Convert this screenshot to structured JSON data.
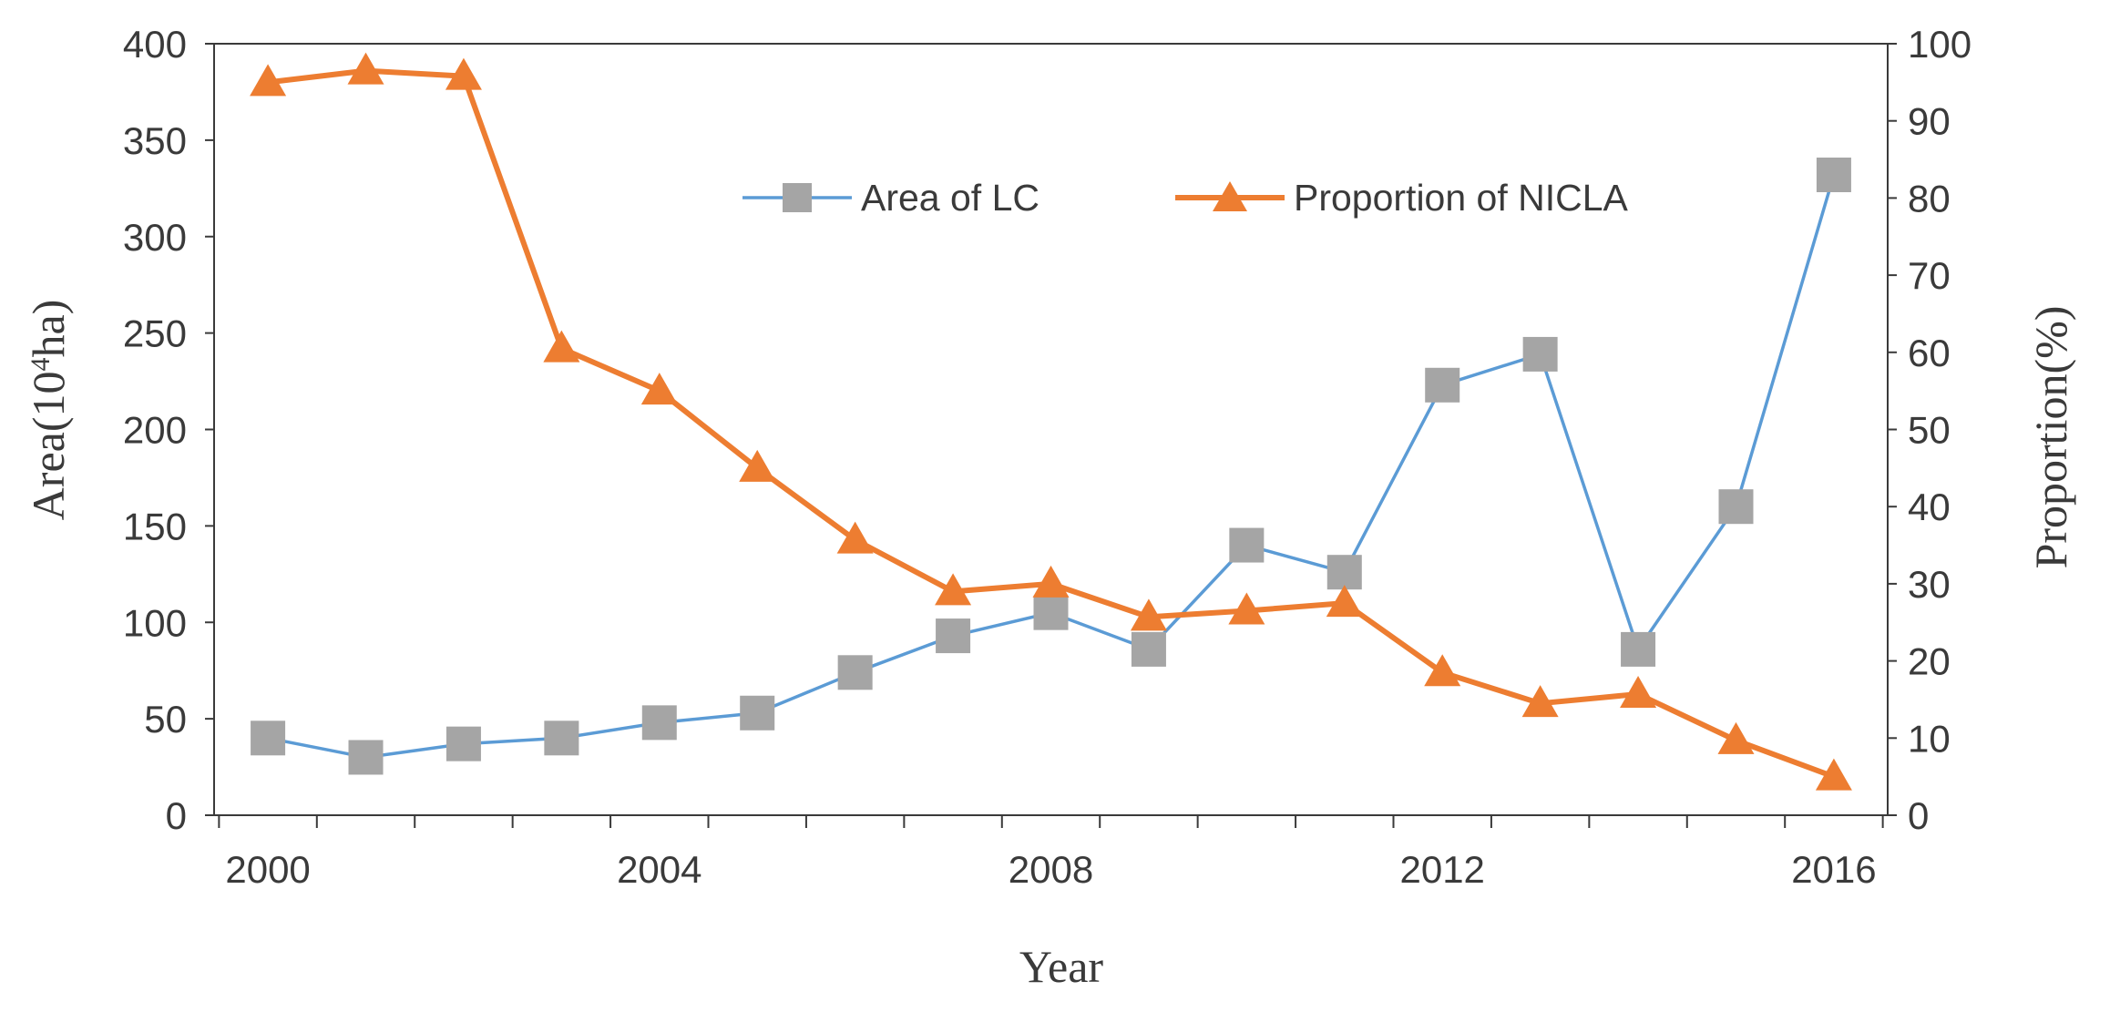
{
  "chart_data": {
    "type": "line",
    "title": "",
    "x": [
      2000,
      2001,
      2002,
      2003,
      2004,
      2005,
      2006,
      2007,
      2008,
      2009,
      2010,
      2011,
      2012,
      2013,
      2014,
      2015,
      2016
    ],
    "xlabel": "Year",
    "x_tick_labels": [
      "2000",
      "2004",
      "2008",
      "2012",
      "2016"
    ],
    "xlim": [
      1999.45,
      2016.55
    ],
    "ylabel_left": {
      "prefix": "Area(10",
      "superscript": "4",
      "suffix": "ha)"
    },
    "ylim_left": [
      0,
      400
    ],
    "y_ticks_left": [
      "0",
      "50",
      "100",
      "150",
      "200",
      "250",
      "300",
      "350",
      "400"
    ],
    "ylabel_right": "Proportion(%)",
    "ylim_right": [
      0,
      100
    ],
    "y_ticks_right": [
      "0",
      "10",
      "20",
      "30",
      "40",
      "50",
      "60",
      "70",
      "80",
      "90",
      "100"
    ],
    "series": [
      {
        "name": "Area of LC",
        "axis": "left",
        "marker": "square",
        "line_color": "#5B9BD5",
        "marker_color": "#A5A5A5",
        "values": [
          40,
          30,
          37,
          40,
          48,
          53,
          74,
          93,
          105,
          86,
          140,
          126,
          223,
          239,
          86,
          160,
          332
        ]
      },
      {
        "name": "Proportion of NICLA",
        "axis": "right",
        "marker": "triangle",
        "line_color": "#ED7D31",
        "marker_color": "#ED7D31",
        "values": [
          95,
          96.5,
          95.8,
          60.5,
          55,
          45,
          35.7,
          29,
          30,
          25.7,
          26.5,
          27.5,
          18.5,
          14.5,
          15.7,
          9.7,
          5
        ]
      }
    ],
    "legend_position": "top-right"
  }
}
